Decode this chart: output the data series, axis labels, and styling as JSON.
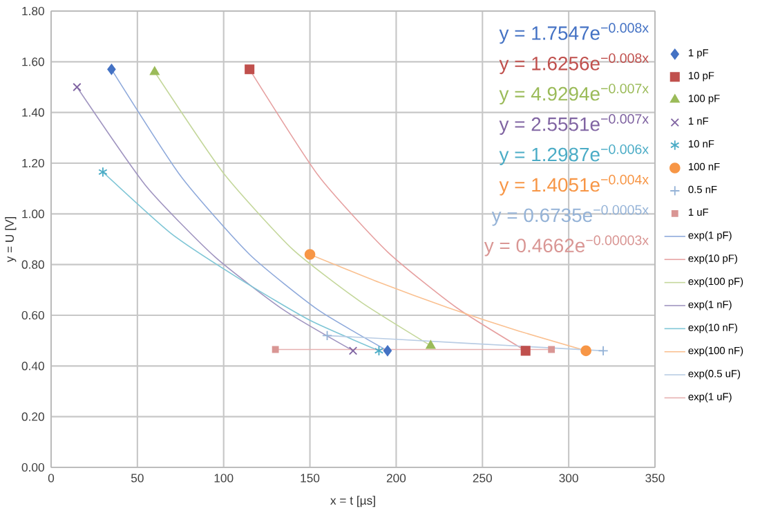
{
  "chart_data": {
    "type": "scatter",
    "xlabel": "x = t [µs]",
    "ylabel": "y = U [V]",
    "xlim": [
      0,
      350
    ],
    "xticks": [
      0,
      50,
      100,
      150,
      200,
      250,
      300,
      350
    ],
    "ylim": [
      0,
      1.8
    ],
    "yticks": [
      {
        "value": 0,
        "label": "0.00"
      },
      {
        "value": 0.2,
        "label": "0.20"
      },
      {
        "value": 0.4,
        "label": "0.40"
      },
      {
        "value": 0.6,
        "label": "0.60"
      },
      {
        "value": 0.8,
        "label": "0.80"
      },
      {
        "value": 1.0,
        "label": "1.00"
      },
      {
        "value": 1.2,
        "label": "1.20"
      },
      {
        "value": 1.4,
        "label": "1.40"
      },
      {
        "value": 1.6,
        "label": "1.60"
      },
      {
        "value": 1.8,
        "label": "1.80"
      }
    ],
    "grid": true,
    "legend": "right",
    "annotations": [
      "y = 1.7547e$^{−0.008x}$",
      "y = 1.6256e$^{−0.008x}$",
      "y = 4.9294e$^{−0.007x}$",
      "y = 2.5551e$^{−0.007x}$",
      "y = 1.2987e$^{−0.006x}$",
      "y = 1.4051e$^{−0.004x}$",
      "y = 0.6735e$^{−0.0005x}$",
      "y = 0.4662e$^{−0.00003x}$"
    ],
    "series": [
      {
        "name": "1 pF",
        "marker": "diamond",
        "color": "#4472c4",
        "x": [
          35,
          195
        ],
        "values": [
          1.57,
          0.46
        ]
      },
      {
        "name": "10 pF",
        "marker": "square",
        "color": "#c0504d",
        "x": [
          115,
          275
        ],
        "values": [
          1.57,
          0.46
        ]
      },
      {
        "name": "100 pF",
        "marker": "triangle",
        "color": "#9bbb59",
        "x": [
          60,
          220
        ],
        "values": [
          1.56,
          0.48
        ]
      },
      {
        "name": "1 nF",
        "marker": "cross",
        "color": "#8064a2",
        "x": [
          15,
          175
        ],
        "values": [
          1.5,
          0.46
        ]
      },
      {
        "name": "10 nF",
        "color": "#4bacc6",
        "x": [
          30,
          190
        ],
        "values": [
          1.165,
          0.46
        ]
      },
      {
        "name": "100 nF",
        "marker": "circle",
        "color": "#f79646",
        "x": [
          150,
          310
        ],
        "values": [
          0.84,
          0.46
        ]
      },
      {
        "name": "0.5 nF",
        "color": "#95b3d7",
        "x": [
          160,
          320
        ],
        "values": [
          0.52,
          0.46
        ]
      },
      {
        "name": "1 uF",
        "color": "#d99694",
        "x": [
          130,
          290
        ],
        "values": [
          0.465,
          0.465
        ]
      },
      {
        "name": "exp(1 pF)",
        "type": "line",
        "marker": "none",
        "line_style": "solid",
        "color": "#8ea9db",
        "x": [
          35,
          75,
          115,
          155,
          195
        ],
        "values": [
          1.57,
          1.15,
          0.84,
          0.62,
          0.46
        ]
      },
      {
        "name": "exp(10 pF)",
        "type": "line",
        "marker": "none",
        "line_style": "solid",
        "color": "#e6a0a0",
        "x": [
          115,
          155,
          195,
          235,
          275
        ],
        "values": [
          1.57,
          1.15,
          0.85,
          0.63,
          0.46
        ]
      },
      {
        "name": "exp(100 pF)",
        "type": "line",
        "marker": "none",
        "line_style": "solid",
        "color": "#c4d79b",
        "x": [
          60,
          100,
          140,
          180,
          220
        ],
        "values": [
          1.56,
          1.16,
          0.86,
          0.65,
          0.48
        ]
      },
      {
        "name": "exp(1 nF)",
        "type": "line",
        "marker": "none",
        "line_style": "solid",
        "color": "#a095c0",
        "x": [
          15,
          55,
          95,
          135,
          175
        ],
        "values": [
          1.5,
          1.11,
          0.83,
          0.62,
          0.46
        ]
      },
      {
        "name": "exp(10 nF)",
        "type": "line",
        "marker": "none",
        "line_style": "solid",
        "color": "#7fc6d6",
        "x": [
          30,
          70,
          110,
          150,
          190
        ],
        "values": [
          1.165,
          0.92,
          0.74,
          0.58,
          0.46
        ]
      },
      {
        "name": "exp(100 nF)",
        "type": "line",
        "marker": "none",
        "line_style": "solid",
        "color": "#fac090",
        "x": [
          150,
          190,
          230,
          270,
          310
        ],
        "values": [
          0.84,
          0.73,
          0.63,
          0.54,
          0.46
        ]
      },
      {
        "name": "exp(0.5 uF)",
        "type": "line",
        "marker": "none",
        "line_style": "solid",
        "color": "#b8cce4",
        "x": [
          160,
          240,
          320
        ],
        "values": [
          0.52,
          0.49,
          0.46
        ]
      },
      {
        "name": "exp(1 uF)",
        "type": "line",
        "marker": "none",
        "line_style": "solid",
        "color": "#e6b0b0",
        "x": [
          130,
          290
        ],
        "values": [
          0.465,
          0.465
        ]
      }
    ]
  }
}
